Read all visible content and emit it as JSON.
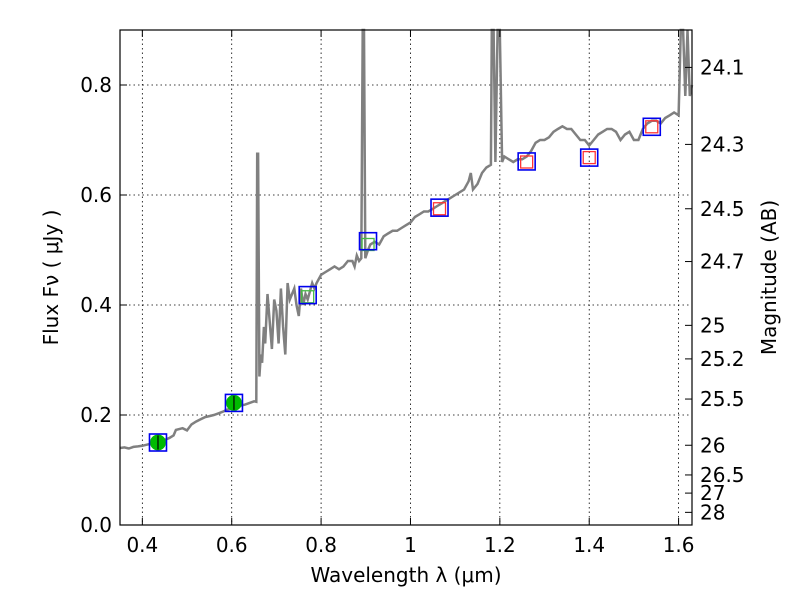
{
  "chart_data": {
    "type": "line",
    "xlabel": "Wavelength  λ (μm)",
    "ylabel": "Flux  Fν  ( μJy )",
    "y2label": "Magnitude (AB)",
    "xlim": [
      0.35,
      1.63
    ],
    "ylim": [
      0.0,
      0.9
    ],
    "grid": true,
    "grid_style": "dotted",
    "x_ticks": [
      0.4,
      0.6,
      0.8,
      1.0,
      1.2,
      1.4,
      1.6
    ],
    "x_tick_labels": [
      "0.4",
      "0.6",
      "0.8",
      "1",
      "1.2",
      "1.4",
      "1.6"
    ],
    "y_ticks": [
      0.0,
      0.2,
      0.4,
      0.6,
      0.8
    ],
    "y_tick_labels": [
      "0.0",
      "0.2",
      "0.4",
      "0.6",
      "0.8"
    ],
    "y2_ticks": [
      {
        "label": "24.1",
        "flux": 0.832
      },
      {
        "label": "24.3",
        "flux": 0.692
      },
      {
        "label": "24.5",
        "flux": 0.575
      },
      {
        "label": "24.7",
        "flux": 0.479
      },
      {
        "label": "25",
        "flux": 0.363
      },
      {
        "label": "25.2",
        "flux": 0.302
      },
      {
        "label": "25.5",
        "flux": 0.229
      },
      {
        "label": "26",
        "flux": 0.145
      },
      {
        "label": "26.5",
        "flux": 0.091
      },
      {
        "label": "27",
        "flux": 0.058
      },
      {
        "label": "28",
        "flux": 0.023
      }
    ],
    "sed_color": "#808080",
    "sed": [
      [
        0.35,
        0.14
      ],
      [
        0.36,
        0.141
      ],
      [
        0.37,
        0.139
      ],
      [
        0.38,
        0.142
      ],
      [
        0.39,
        0.143
      ],
      [
        0.4,
        0.144
      ],
      [
        0.41,
        0.146
      ],
      [
        0.42,
        0.148
      ],
      [
        0.43,
        0.15
      ],
      [
        0.44,
        0.152
      ],
      [
        0.45,
        0.155
      ],
      [
        0.46,
        0.158
      ],
      [
        0.47,
        0.163
      ],
      [
        0.475,
        0.173
      ],
      [
        0.49,
        0.176
      ],
      [
        0.5,
        0.172
      ],
      [
        0.51,
        0.183
      ],
      [
        0.52,
        0.188
      ],
      [
        0.53,
        0.192
      ],
      [
        0.54,
        0.196
      ],
      [
        0.55,
        0.198
      ],
      [
        0.56,
        0.2
      ],
      [
        0.57,
        0.203
      ],
      [
        0.58,
        0.206
      ],
      [
        0.59,
        0.21
      ],
      [
        0.6,
        0.212
      ],
      [
        0.61,
        0.215
      ],
      [
        0.62,
        0.217
      ],
      [
        0.63,
        0.219
      ],
      [
        0.64,
        0.222
      ],
      [
        0.65,
        0.225
      ],
      [
        0.655,
        0.224
      ],
      [
        0.657,
        0.675
      ],
      [
        0.659,
        0.675
      ],
      [
        0.662,
        0.27
      ],
      [
        0.665,
        0.31
      ],
      [
        0.668,
        0.295
      ],
      [
        0.672,
        0.36
      ],
      [
        0.675,
        0.33
      ],
      [
        0.68,
        0.42
      ],
      [
        0.685,
        0.37
      ],
      [
        0.69,
        0.32
      ],
      [
        0.695,
        0.41
      ],
      [
        0.7,
        0.39
      ],
      [
        0.705,
        0.33
      ],
      [
        0.71,
        0.43
      ],
      [
        0.715,
        0.36
      ],
      [
        0.72,
        0.31
      ],
      [
        0.725,
        0.44
      ],
      [
        0.73,
        0.41
      ],
      [
        0.74,
        0.43
      ],
      [
        0.745,
        0.4
      ],
      [
        0.75,
        0.38
      ],
      [
        0.755,
        0.43
      ],
      [
        0.76,
        0.4
      ],
      [
        0.765,
        0.42
      ],
      [
        0.77,
        0.41
      ],
      [
        0.78,
        0.44
      ],
      [
        0.785,
        0.43
      ],
      [
        0.79,
        0.44
      ],
      [
        0.8,
        0.455
      ],
      [
        0.81,
        0.46
      ],
      [
        0.82,
        0.465
      ],
      [
        0.83,
        0.47
      ],
      [
        0.84,
        0.465
      ],
      [
        0.85,
        0.47
      ],
      [
        0.86,
        0.48
      ],
      [
        0.87,
        0.48
      ],
      [
        0.875,
        0.47
      ],
      [
        0.88,
        0.49
      ],
      [
        0.885,
        0.48
      ],
      [
        0.89,
        0.485
      ],
      [
        0.893,
        0.9
      ],
      [
        0.896,
        0.9
      ],
      [
        0.899,
        0.485
      ],
      [
        0.905,
        0.5
      ],
      [
        0.91,
        0.51
      ],
      [
        0.92,
        0.515
      ],
      [
        0.93,
        0.51
      ],
      [
        0.94,
        0.525
      ],
      [
        0.95,
        0.53
      ],
      [
        0.96,
        0.535
      ],
      [
        0.97,
        0.535
      ],
      [
        0.98,
        0.54
      ],
      [
        0.99,
        0.545
      ],
      [
        1.0,
        0.55
      ],
      [
        1.01,
        0.56
      ],
      [
        1.02,
        0.565
      ],
      [
        1.03,
        0.57
      ],
      [
        1.04,
        0.57
      ],
      [
        1.05,
        0.575
      ],
      [
        1.06,
        0.58
      ],
      [
        1.07,
        0.585
      ],
      [
        1.08,
        0.59
      ],
      [
        1.09,
        0.595
      ],
      [
        1.1,
        0.6
      ],
      [
        1.11,
        0.605
      ],
      [
        1.12,
        0.61
      ],
      [
        1.13,
        0.625
      ],
      [
        1.135,
        0.64
      ],
      [
        1.14,
        0.61
      ],
      [
        1.15,
        0.62
      ],
      [
        1.16,
        0.64
      ],
      [
        1.17,
        0.65
      ],
      [
        1.18,
        0.655
      ],
      [
        1.182,
        0.9
      ],
      [
        1.186,
        0.9
      ],
      [
        1.19,
        0.66
      ],
      [
        1.195,
        0.9
      ],
      [
        1.2,
        0.9
      ],
      [
        1.205,
        0.66
      ],
      [
        1.21,
        0.67
      ],
      [
        1.22,
        0.665
      ],
      [
        1.23,
        0.66
      ],
      [
        1.24,
        0.665
      ],
      [
        1.25,
        0.665
      ],
      [
        1.26,
        0.67
      ],
      [
        1.27,
        0.68
      ],
      [
        1.28,
        0.695
      ],
      [
        1.29,
        0.7
      ],
      [
        1.3,
        0.7
      ],
      [
        1.31,
        0.705
      ],
      [
        1.32,
        0.715
      ],
      [
        1.33,
        0.72
      ],
      [
        1.34,
        0.725
      ],
      [
        1.35,
        0.72
      ],
      [
        1.36,
        0.72
      ],
      [
        1.37,
        0.71
      ],
      [
        1.38,
        0.7
      ],
      [
        1.39,
        0.7
      ],
      [
        1.4,
        0.69
      ],
      [
        1.41,
        0.7
      ],
      [
        1.42,
        0.71
      ],
      [
        1.43,
        0.715
      ],
      [
        1.44,
        0.72
      ],
      [
        1.45,
        0.72
      ],
      [
        1.46,
        0.715
      ],
      [
        1.47,
        0.7
      ],
      [
        1.48,
        0.71
      ],
      [
        1.49,
        0.715
      ],
      [
        1.5,
        0.7
      ],
      [
        1.51,
        0.7
      ],
      [
        1.52,
        0.72
      ],
      [
        1.53,
        0.73
      ],
      [
        1.54,
        0.735
      ],
      [
        1.55,
        0.735
      ],
      [
        1.56,
        0.73
      ],
      [
        1.57,
        0.74
      ],
      [
        1.58,
        0.745
      ],
      [
        1.59,
        0.75
      ],
      [
        1.6,
        0.745
      ],
      [
        1.605,
        0.9
      ],
      [
        1.61,
        0.9
      ],
      [
        1.615,
        0.78
      ],
      [
        1.62,
        0.9
      ],
      [
        1.625,
        0.78
      ],
      [
        1.63,
        0.8
      ]
    ],
    "points": [
      {
        "x": 0.435,
        "y": 0.15,
        "model_y": 0.15,
        "fill": "#00bb00",
        "model_color": "#00bb00",
        "model_shape": "circle"
      },
      {
        "x": 0.605,
        "y": 0.222,
        "model_y": 0.222,
        "fill": "#00bb00",
        "model_color": "#00bb00",
        "model_shape": "circle"
      },
      {
        "x": 0.77,
        "y": 0.418,
        "model_y": 0.415,
        "fill": "none",
        "model_color": "#44bb44",
        "model_shape": "square"
      },
      {
        "x": 0.905,
        "y": 0.516,
        "model_y": 0.51,
        "fill": "none",
        "model_color": "#44bb44",
        "model_shape": "square"
      },
      {
        "x": 1.065,
        "y": 0.577,
        "model_y": 0.575,
        "fill": "none",
        "model_color": "#ff3333",
        "model_shape": "square"
      },
      {
        "x": 1.26,
        "y": 0.661,
        "model_y": 0.66,
        "fill": "none",
        "model_color": "#ff3333",
        "model_shape": "square"
      },
      {
        "x": 1.4,
        "y": 0.668,
        "model_y": 0.668,
        "fill": "none",
        "model_color": "#ff3333",
        "model_shape": "square"
      },
      {
        "x": 1.54,
        "y": 0.724,
        "model_y": 0.724,
        "fill": "none",
        "model_color": "#ff3333",
        "model_shape": "square"
      }
    ],
    "obs_marker_color": "#0000ee"
  }
}
